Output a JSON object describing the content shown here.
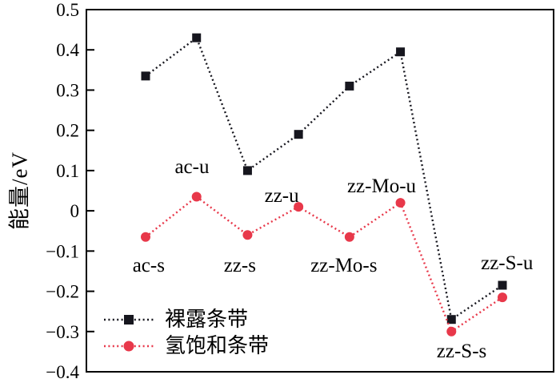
{
  "chart_data": {
    "type": "line",
    "title": "",
    "xlabel": "",
    "ylabel": "能量/eV",
    "ylim": [
      -0.4,
      0.5
    ],
    "ytick_step": 0.1,
    "ytick_labels": [
      "0.5",
      "0.4",
      "0.3",
      "0.2",
      "0.1",
      "0",
      "−0.1",
      "−0.2",
      "−0.3",
      "−0.4"
    ],
    "grid": false,
    "legend_position": "bottom-left",
    "categories": [
      "ac-s",
      "ac-u",
      "zz-s",
      "zz-u",
      "zz-Mo-s",
      "zz-Mo-u",
      "zz-S-s",
      "zz-S-u"
    ],
    "series": [
      {
        "name": "裸露条带",
        "marker": "square",
        "color": "#16161e",
        "line_style": "dotted",
        "values": [
          0.335,
          0.43,
          0.1,
          0.19,
          0.31,
          0.395,
          -0.27,
          -0.185
        ]
      },
      {
        "name": "氢饱和条带",
        "marker": "circle",
        "color": "#e8384a",
        "line_style": "dotted",
        "values": [
          -0.065,
          0.035,
          -0.06,
          0.01,
          -0.065,
          0.02,
          -0.3,
          -0.215
        ]
      }
    ],
    "annotations": [
      {
        "text": "ac-s",
        "x": 0.06,
        "y": -0.133
      },
      {
        "text": "ac-u",
        "x": 0.91,
        "y": 0.112
      },
      {
        "text": "zz-s",
        "x": 1.85,
        "y": -0.133
      },
      {
        "text": "zz-u",
        "x": 2.67,
        "y": 0.04
      },
      {
        "text": "zz-Mo-s",
        "x": 3.89,
        "y": -0.133
      },
      {
        "text": "zz-Mo-u",
        "x": 4.63,
        "y": 0.064
      },
      {
        "text": "zz-S-s",
        "x": 6.2,
        "y": -0.346
      },
      {
        "text": "zz-S-u",
        "x": 7.09,
        "y": -0.127
      }
    ]
  }
}
